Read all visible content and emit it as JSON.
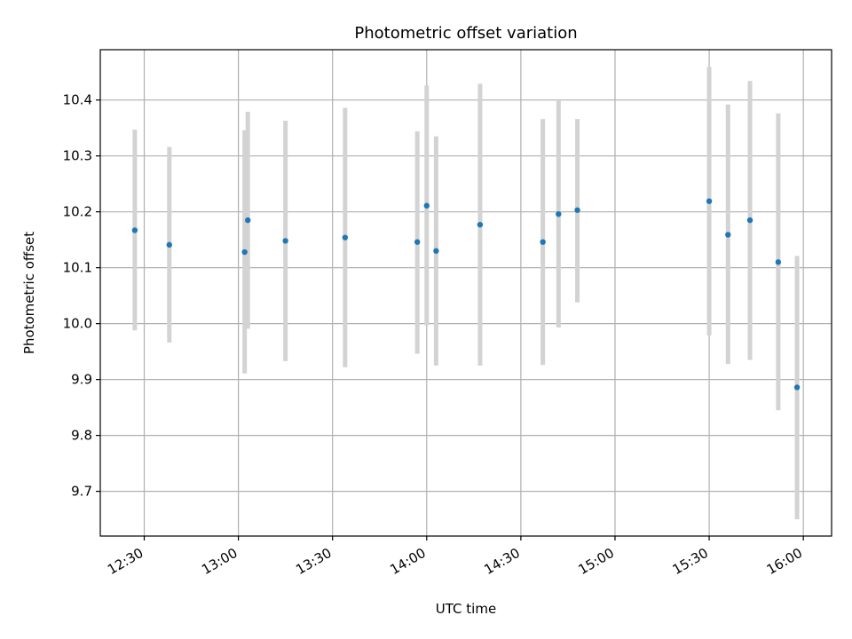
{
  "chart_data": {
    "type": "scatter",
    "title": "Photometric offset variation",
    "xlabel": "UTC time",
    "ylabel": "Photometric offset",
    "x_ticks": [
      "12:30",
      "13:00",
      "13:30",
      "14:00",
      "14:30",
      "15:00",
      "15:30",
      "16:00"
    ],
    "y_ticks": [
      "9.7",
      "9.8",
      "9.9",
      "10.0",
      "10.1",
      "10.2",
      "10.3",
      "10.4"
    ],
    "xlim": [
      "12:16",
      "16:09"
    ],
    "ylim": [
      9.62,
      10.49
    ],
    "grid": true,
    "colors": {
      "points": "#1f77b4",
      "errorbars": "#d3d3d3",
      "grid": "#b0b0b0"
    },
    "points": [
      {
        "time": "12:27",
        "y": 10.167,
        "low": 9.988,
        "high": 10.347
      },
      {
        "time": "12:38",
        "y": 10.141,
        "low": 9.966,
        "high": 10.316
      },
      {
        "time": "13:02",
        "y": 10.128,
        "low": 9.911,
        "high": 10.346
      },
      {
        "time": "13:03",
        "y": 10.185,
        "low": 9.991,
        "high": 10.379
      },
      {
        "time": "13:15",
        "y": 10.148,
        "low": 9.933,
        "high": 10.363
      },
      {
        "time": "13:34",
        "y": 10.154,
        "low": 9.922,
        "high": 10.386
      },
      {
        "time": "13:57",
        "y": 10.146,
        "low": 9.946,
        "high": 10.344
      },
      {
        "time": "14:00",
        "y": 10.211,
        "low": 9.997,
        "high": 10.426
      },
      {
        "time": "14:03",
        "y": 10.13,
        "low": 9.925,
        "high": 10.335
      },
      {
        "time": "14:17",
        "y": 10.177,
        "low": 9.925,
        "high": 10.429
      },
      {
        "time": "14:37",
        "y": 10.146,
        "low": 9.926,
        "high": 10.366
      },
      {
        "time": "14:42",
        "y": 10.196,
        "low": 9.993,
        "high": 10.4
      },
      {
        "time": "14:48",
        "y": 10.203,
        "low": 10.038,
        "high": 10.366
      },
      {
        "time": "15:30",
        "y": 10.219,
        "low": 9.979,
        "high": 10.459
      },
      {
        "time": "15:36",
        "y": 10.159,
        "low": 9.928,
        "high": 10.392
      },
      {
        "time": "15:43",
        "y": 10.185,
        "low": 9.935,
        "high": 10.434
      },
      {
        "time": "15:52",
        "y": 10.11,
        "low": 9.845,
        "high": 10.376
      },
      {
        "time": "15:58",
        "y": 9.886,
        "low": 9.65,
        "high": 10.121
      }
    ]
  }
}
